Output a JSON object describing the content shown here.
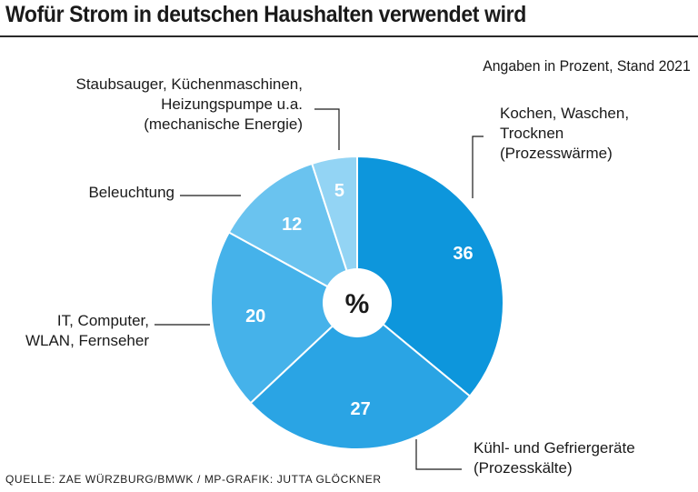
{
  "title": "Wofür Strom in deutschen Haushalten verwendet wird",
  "source": "QUELLE: ZAE WÜRZBURG/BMWK  / MP-GRAFIK: JUTTA GLÖCKNER",
  "chart_data": {
    "type": "pie",
    "title": "Wofür Strom in deutschen Haushalten verwendet wird",
    "subtitle": "Angaben in Prozent, Stand 2021",
    "center_label": "%",
    "slices": [
      {
        "label_lines": [
          "Kochen, Waschen,",
          "Trocknen",
          "(Prozesswärme)"
        ],
        "value": 36,
        "color": "#0d96dc"
      },
      {
        "label_lines": [
          "Kühl- und Gefriergeräte",
          "(Prozesskälte)"
        ],
        "value": 27,
        "color": "#2aa4e4"
      },
      {
        "label_lines": [
          "IT, Computer,",
          "WLAN, Fernseher"
        ],
        "value": 20,
        "color": "#45b2ea"
      },
      {
        "label_lines": [
          "Beleuchtung"
        ],
        "value": 12,
        "color": "#6ac3ef"
      },
      {
        "label_lines": [
          "Staubsauger, Küchenmaschinen,",
          "Heizungspumpe u.a.",
          "(mechanische Energie)"
        ],
        "value": 5,
        "color": "#93d4f4"
      }
    ]
  }
}
